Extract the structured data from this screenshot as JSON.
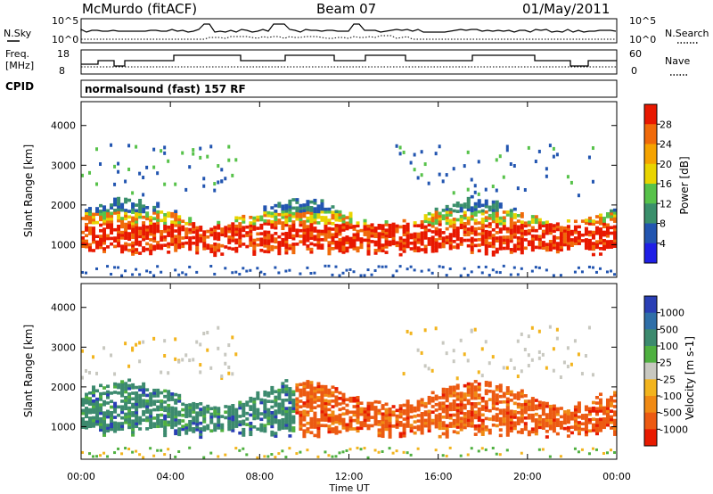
{
  "header": {
    "station": "McMurdo (fitACF)",
    "beam": "Beam 07",
    "date": "01/May/2011"
  },
  "top_strip": {
    "left_label": "N.Sky",
    "right_label": "N.Search",
    "left_ticks": [
      "10^5",
      "10^0"
    ],
    "right_ticks": [
      "10^5",
      "10^0"
    ]
  },
  "freq_strip": {
    "left_label_line1": "Freq.",
    "left_label_line2": "[MHz]",
    "left_ticks": [
      "18",
      "8"
    ],
    "right_label": "Nave",
    "right_ticks": [
      "60",
      "0"
    ]
  },
  "cpid": {
    "label": "CPID",
    "value": "normalsound (fast) 157 RF"
  },
  "x_axis": {
    "label": "Time UT",
    "ticks": [
      "00:00",
      "04:00",
      "08:00",
      "12:00",
      "16:00",
      "20:00",
      "00:00"
    ]
  },
  "chart_data": [
    {
      "type": "heatmap",
      "panel": "power",
      "ylabel": "Slant Range [km]",
      "xlabel": "",
      "x_ticks_hours": [
        0,
        4,
        8,
        12,
        16,
        20,
        24
      ],
      "y_ticks": [
        1000,
        2000,
        3000,
        4000
      ],
      "ylim": [
        180,
        4600
      ],
      "xlim_hours": [
        0,
        24
      ],
      "colorbar": {
        "label": "Power [dB]",
        "ticks": [
          "4",
          "8",
          "12",
          "16",
          "20",
          "24",
          "28"
        ],
        "range": [
          0,
          32
        ],
        "colors": [
          "#1f1fe6",
          "#2255b0",
          "#3a8f6b",
          "#57c24a",
          "#e9d400",
          "#f5a300",
          "#f06a0a",
          "#e81800"
        ]
      }
    },
    {
      "type": "heatmap",
      "panel": "velocity",
      "ylabel": "Slant Range [km]",
      "xlabel": "Time UT",
      "x_ticks_hours": [
        0,
        4,
        8,
        12,
        16,
        20,
        24
      ],
      "y_ticks": [
        1000,
        2000,
        3000,
        4000
      ],
      "ylim": [
        180,
        4600
      ],
      "xlim_hours": [
        0,
        24
      ],
      "colorbar": {
        "label": "Velocity [m s-1]",
        "ticks": [
          "1000",
          "500",
          "100",
          "25",
          "-25",
          "-100",
          "-500",
          "-1000"
        ],
        "colors": [
          "#2a3fb5",
          "#2f6fa8",
          "#3c8a6e",
          "#4fb040",
          "#c8c8c0",
          "#f2b41e",
          "#f08a14",
          "#ec5a12",
          "#e81a00"
        ]
      }
    }
  ]
}
